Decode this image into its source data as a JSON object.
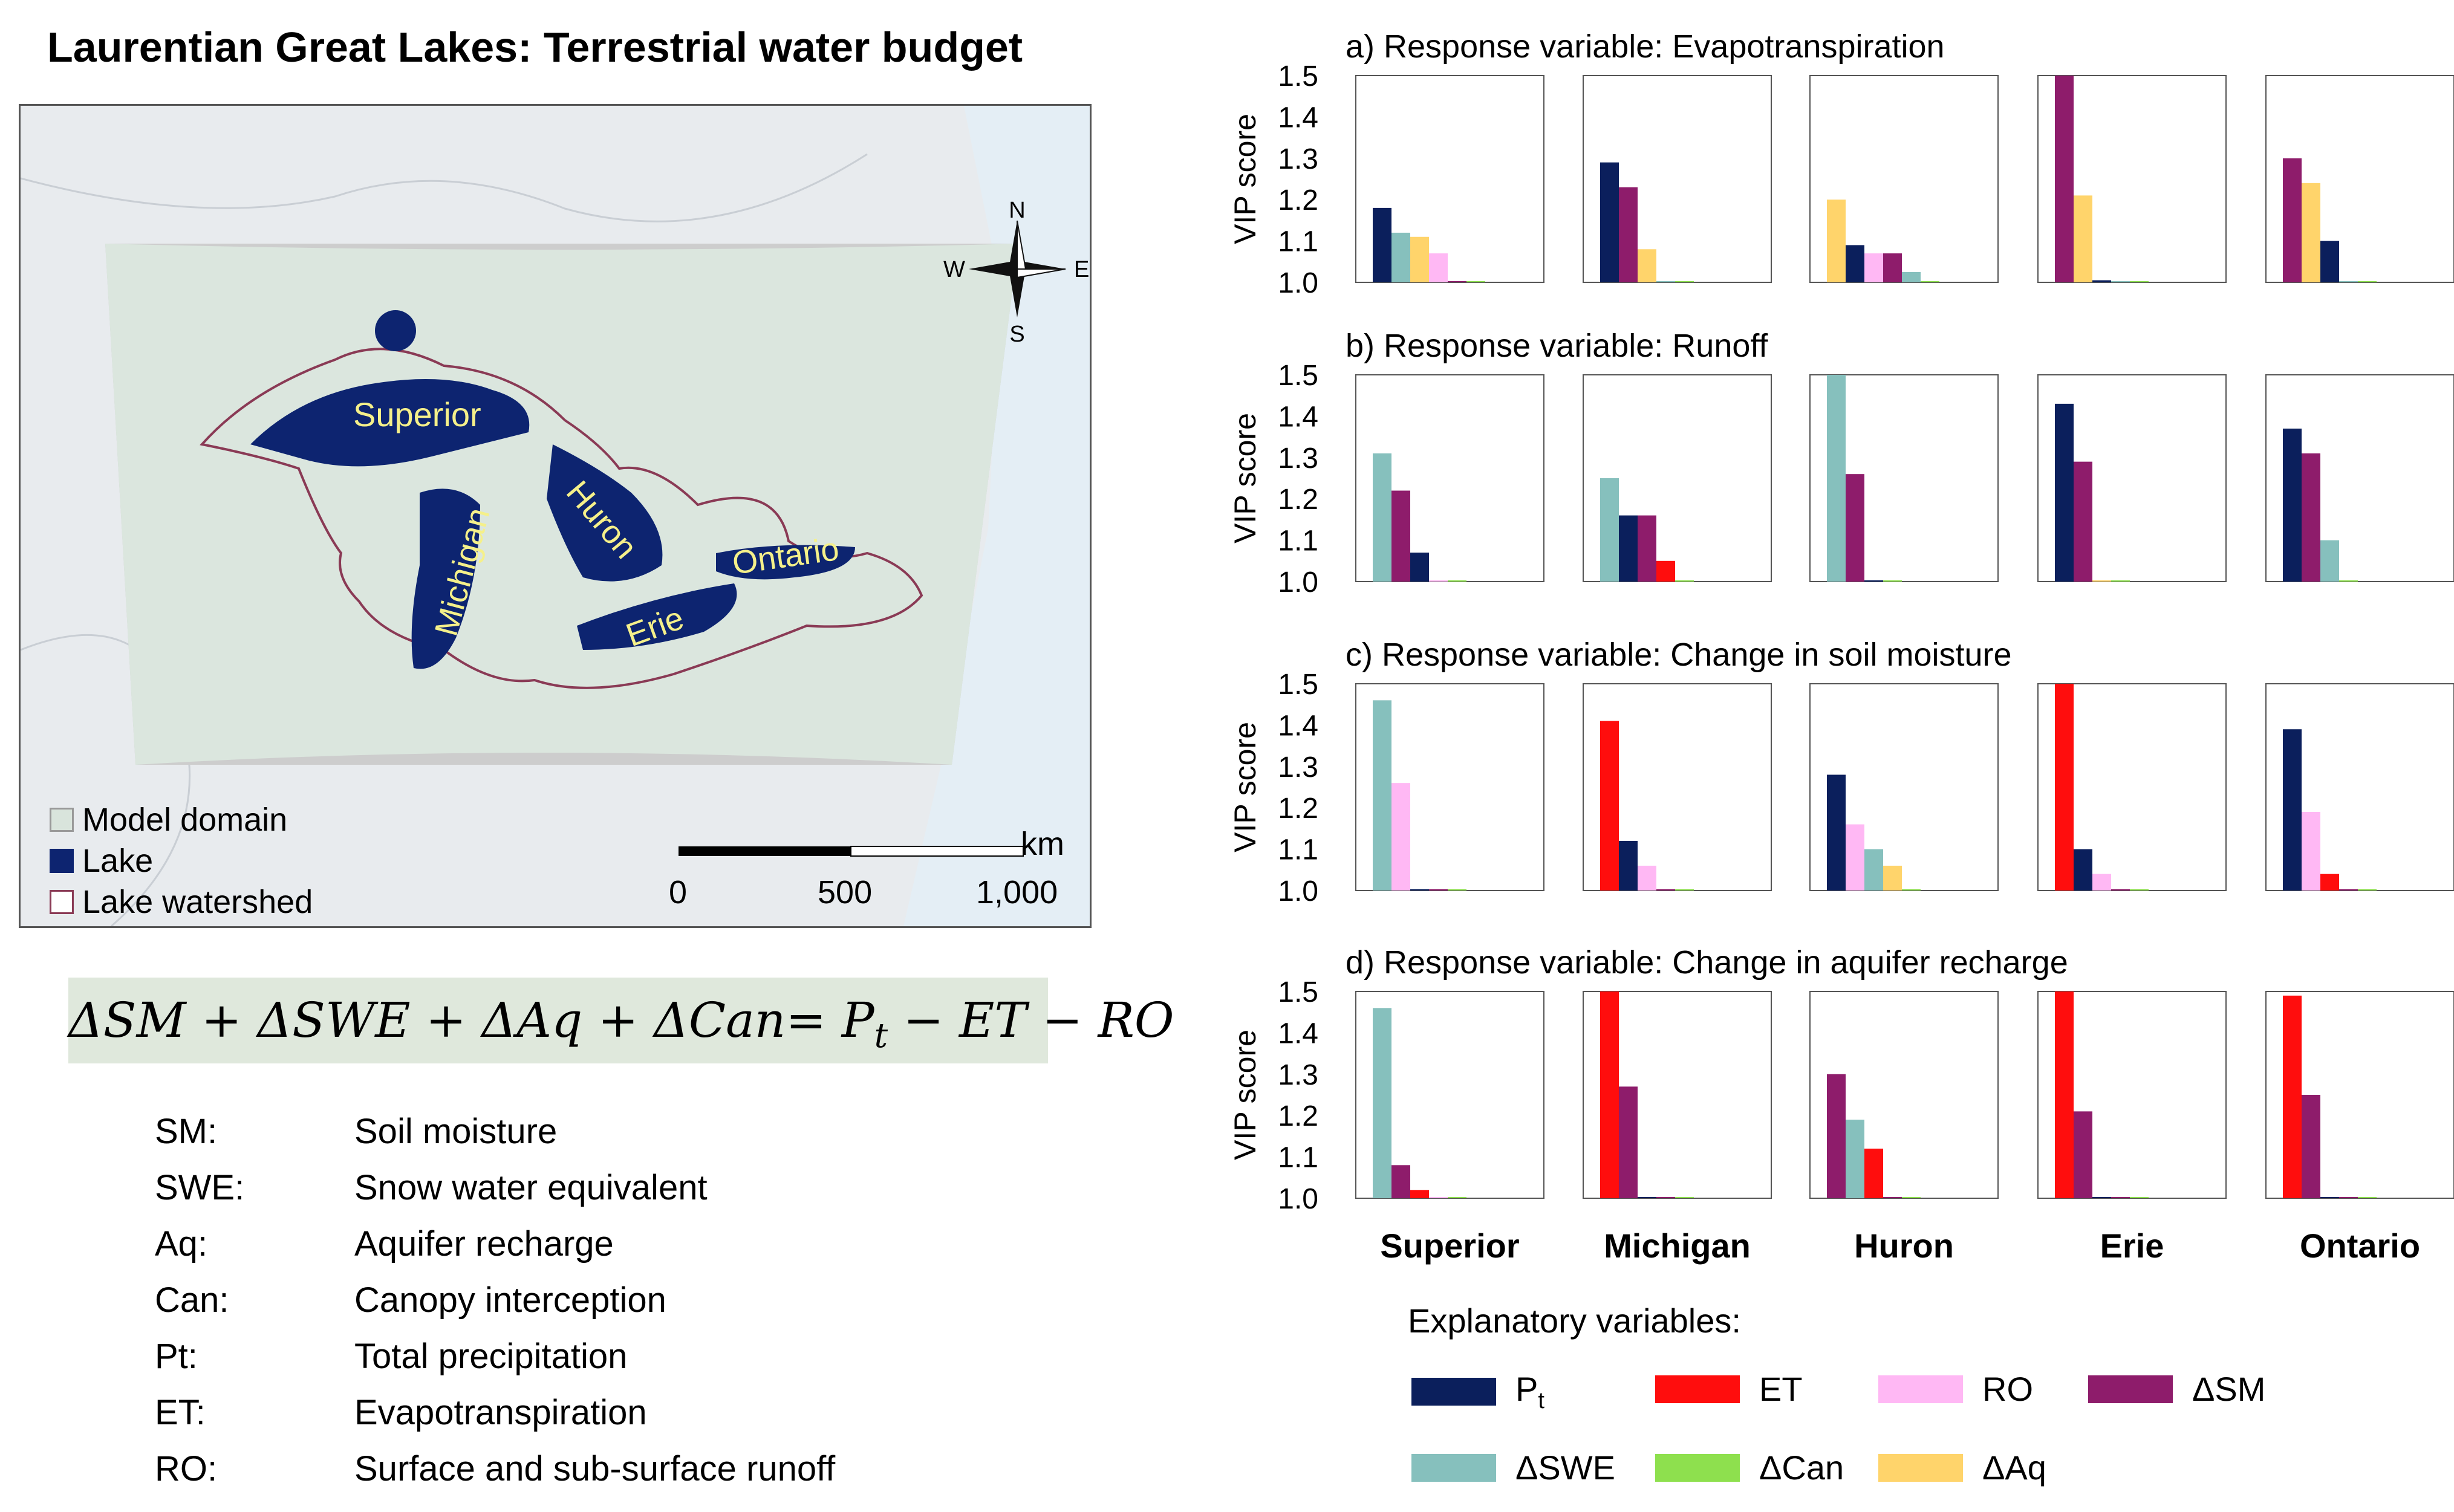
{
  "title": "Laurentian Great Lakes: Terrestrial water budget",
  "map": {
    "compass": {
      "n": "N",
      "e": "E",
      "s": "S",
      "w": "W"
    },
    "lake_labels": [
      "Superior",
      "Michigan",
      "Huron",
      "Erie",
      "Ontario"
    ],
    "legend": [
      {
        "label": "Model domain",
        "color": "#d9e4dc"
      },
      {
        "label": "Lake",
        "color": "#0d2470"
      },
      {
        "label": "Lake watershed",
        "color": "#8a3a55"
      }
    ],
    "scale": {
      "unit": "km",
      "ticks": [
        "0",
        "500",
        "1,000"
      ]
    }
  },
  "equation": {
    "lhs": "ΔSM + ΔSWE + ΔAq + ΔCan= P",
    "sub": "t",
    "rhs": " − ET − RO"
  },
  "definitions": [
    {
      "abbr": "SM:",
      "text": "Soil moisture"
    },
    {
      "abbr": "SWE:",
      "text": "Snow water equivalent"
    },
    {
      "abbr": "Aq:",
      "text": "Aquifer recharge"
    },
    {
      "abbr": "Can:",
      "text": "Canopy interception"
    },
    {
      "abbr": "Pt:",
      "text": "Total precipitation"
    },
    {
      "abbr": "ET:",
      "text": "Evapotranspiration"
    },
    {
      "abbr": "RO:",
      "text": "Surface and sub-surface runoff"
    }
  ],
  "explanatory": {
    "title": "Explanatory variables:",
    "items": [
      {
        "key": "Pt",
        "label": "P",
        "sub": "t",
        "color": "#0b1f5c"
      },
      {
        "key": "ET",
        "label": "ET",
        "color": "#ff0d0d"
      },
      {
        "key": "RO",
        "label": "RO",
        "color": "#ffb8f4"
      },
      {
        "key": "dSM",
        "label": "ΔSM",
        "color": "#8e1c6b"
      },
      {
        "key": "dSWE",
        "label": "ΔSWE",
        "color": "#86c0bd"
      },
      {
        "key": "dCan",
        "label": "ΔCan",
        "color": "#8ee04e"
      },
      {
        "key": "dAq",
        "label": "ΔAq",
        "color": "#ffd46b"
      }
    ]
  },
  "chart_data": [
    {
      "type": "bar",
      "title": "a) Response variable: Evapotranspiration",
      "ylabel": "VIP score",
      "ylim": [
        1.0,
        1.5
      ],
      "yticks": [
        "1.0",
        "1.1",
        "1.2",
        "1.3",
        "1.4",
        "1.5"
      ],
      "categories": [
        "Superior",
        "Michigan",
        "Huron",
        "Erie",
        "Ontario"
      ],
      "bars": [
        [
          {
            "v": "Pt",
            "y": 1.18
          },
          {
            "v": "dSWE",
            "y": 1.12
          },
          {
            "v": "dAq",
            "y": 1.11
          },
          {
            "v": "RO",
            "y": 1.07
          },
          {
            "v": "dSM",
            "y": 1.003
          },
          {
            "v": "dCan",
            "y": 1.003
          }
        ],
        [
          {
            "v": "Pt",
            "y": 1.29
          },
          {
            "v": "dSM",
            "y": 1.23
          },
          {
            "v": "dAq",
            "y": 1.08
          },
          {
            "v": "dSWE",
            "y": 1.003
          },
          {
            "v": "dCan",
            "y": 1.003
          }
        ],
        [
          {
            "v": "dAq",
            "y": 1.2
          },
          {
            "v": "Pt",
            "y": 1.09
          },
          {
            "v": "RO",
            "y": 1.07
          },
          {
            "v": "dSM",
            "y": 1.07
          },
          {
            "v": "dSWE",
            "y": 1.025
          },
          {
            "v": "dCan",
            "y": 1.003
          }
        ],
        [
          {
            "v": "dSM",
            "y": 1.5
          },
          {
            "v": "dAq",
            "y": 1.21
          },
          {
            "v": "Pt",
            "y": 1.005
          },
          {
            "v": "dSWE",
            "y": 1.003
          },
          {
            "v": "dCan",
            "y": 1.003
          }
        ],
        [
          {
            "v": "dSM",
            "y": 1.3
          },
          {
            "v": "dAq",
            "y": 1.24
          },
          {
            "v": "Pt",
            "y": 1.1
          },
          {
            "v": "dSWE",
            "y": 1.003
          },
          {
            "v": "dCan",
            "y": 1.003
          }
        ]
      ]
    },
    {
      "type": "bar",
      "title": "b) Response variable: Runoff",
      "ylabel": "VIP score",
      "ylim": [
        1.0,
        1.5
      ],
      "yticks": [
        "1.0",
        "1.1",
        "1.2",
        "1.3",
        "1.4",
        "1.5"
      ],
      "categories": [
        "Superior",
        "Michigan",
        "Huron",
        "Erie",
        "Ontario"
      ],
      "bars": [
        [
          {
            "v": "dSWE",
            "y": 1.31
          },
          {
            "v": "dSM",
            "y": 1.22
          },
          {
            "v": "Pt",
            "y": 1.07
          },
          {
            "v": "RO",
            "y": 1.003
          },
          {
            "v": "dCan",
            "y": 1.003
          }
        ],
        [
          {
            "v": "dSWE",
            "y": 1.25
          },
          {
            "v": "Pt",
            "y": 1.16
          },
          {
            "v": "dSM",
            "y": 1.16
          },
          {
            "v": "ET",
            "y": 1.05
          },
          {
            "v": "dCan",
            "y": 1.003
          }
        ],
        [
          {
            "v": "dSWE",
            "y": 1.5
          },
          {
            "v": "dSM",
            "y": 1.26
          },
          {
            "v": "Pt",
            "y": 1.003
          },
          {
            "v": "dCan",
            "y": 1.003
          }
        ],
        [
          {
            "v": "Pt",
            "y": 1.43
          },
          {
            "v": "dSM",
            "y": 1.29
          },
          {
            "v": "dAq",
            "y": 1.003
          },
          {
            "v": "dCan",
            "y": 1.003
          }
        ],
        [
          {
            "v": "Pt",
            "y": 1.37
          },
          {
            "v": "dSM",
            "y": 1.31
          },
          {
            "v": "dSWE",
            "y": 1.1
          },
          {
            "v": "dCan",
            "y": 1.003
          }
        ]
      ]
    },
    {
      "type": "bar",
      "title": "c) Response variable: Change in soil moisture",
      "ylabel": "VIP score",
      "ylim": [
        1.0,
        1.5
      ],
      "yticks": [
        "1.0",
        "1.1",
        "1.2",
        "1.3",
        "1.4",
        "1.5"
      ],
      "categories": [
        "Superior",
        "Michigan",
        "Huron",
        "Erie",
        "Ontario"
      ],
      "bars": [
        [
          {
            "v": "dSWE",
            "y": 1.46
          },
          {
            "v": "RO",
            "y": 1.26
          },
          {
            "v": "Pt",
            "y": 1.003
          },
          {
            "v": "dSM",
            "y": 1.003
          },
          {
            "v": "dCan",
            "y": 1.003
          }
        ],
        [
          {
            "v": "ET",
            "y": 1.41
          },
          {
            "v": "Pt",
            "y": 1.12
          },
          {
            "v": "RO",
            "y": 1.06
          },
          {
            "v": "dSM",
            "y": 1.003
          },
          {
            "v": "dCan",
            "y": 1.003
          }
        ],
        [
          {
            "v": "Pt",
            "y": 1.28
          },
          {
            "v": "RO",
            "y": 1.16
          },
          {
            "v": "dSWE",
            "y": 1.1
          },
          {
            "v": "dAq",
            "y": 1.06
          },
          {
            "v": "dCan",
            "y": 1.003
          }
        ],
        [
          {
            "v": "ET",
            "y": 1.5
          },
          {
            "v": "Pt",
            "y": 1.1
          },
          {
            "v": "RO",
            "y": 1.04
          },
          {
            "v": "dSM",
            "y": 1.003
          },
          {
            "v": "dCan",
            "y": 1.003
          }
        ],
        [
          {
            "v": "Pt",
            "y": 1.39
          },
          {
            "v": "RO",
            "y": 1.19
          },
          {
            "v": "ET",
            "y": 1.04
          },
          {
            "v": "dSM",
            "y": 1.003
          },
          {
            "v": "dCan",
            "y": 1.003
          }
        ]
      ]
    },
    {
      "type": "bar",
      "title": "d) Response variable: Change in aquifer recharge",
      "ylabel": "VIP score",
      "ylim": [
        1.0,
        1.5
      ],
      "yticks": [
        "1.0",
        "1.1",
        "1.2",
        "1.3",
        "1.4",
        "1.5"
      ],
      "categories": [
        "Superior",
        "Michigan",
        "Huron",
        "Erie",
        "Ontario"
      ],
      "bars": [
        [
          {
            "v": "dSWE",
            "y": 1.46
          },
          {
            "v": "dSM",
            "y": 1.08
          },
          {
            "v": "ET",
            "y": 1.02
          },
          {
            "v": "RO",
            "y": 1.003
          },
          {
            "v": "dCan",
            "y": 1.003
          }
        ],
        [
          {
            "v": "ET",
            "y": 1.5
          },
          {
            "v": "dSM",
            "y": 1.27
          },
          {
            "v": "Pt",
            "y": 1.003
          },
          {
            "v": "dSM",
            "y": 1.003
          },
          {
            "v": "dCan",
            "y": 1.003
          }
        ],
        [
          {
            "v": "dSM",
            "y": 1.3
          },
          {
            "v": "dSWE",
            "y": 1.19
          },
          {
            "v": "ET",
            "y": 1.12
          },
          {
            "v": "dSM",
            "y": 1.003
          },
          {
            "v": "dCan",
            "y": 1.003
          }
        ],
        [
          {
            "v": "ET",
            "y": 1.5
          },
          {
            "v": "dSM",
            "y": 1.21
          },
          {
            "v": "Pt",
            "y": 1.003
          },
          {
            "v": "dSM",
            "y": 1.003
          },
          {
            "v": "dCan",
            "y": 1.003
          }
        ],
        [
          {
            "v": "ET",
            "y": 1.49
          },
          {
            "v": "dSM",
            "y": 1.25
          },
          {
            "v": "Pt",
            "y": 1.003
          },
          {
            "v": "dSM",
            "y": 1.003
          },
          {
            "v": "dCan",
            "y": 1.003
          }
        ]
      ]
    }
  ]
}
